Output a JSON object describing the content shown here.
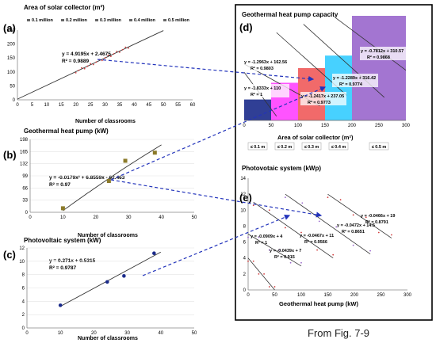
{
  "caption": "From Fig. 7-9",
  "colors": {
    "blue": "#1f3b8f",
    "red": "#d23b3b",
    "olive": "#8b7a2a",
    "navy": "#1a2a8a",
    "magenta": "#ff40ff",
    "salmon": "#f05a5a",
    "cyan": "#33ccff",
    "purple": "#9966cc",
    "trend": "#444444",
    "dash": "#2233bb"
  },
  "panel_a": {
    "label": "(a)",
    "title": "Area of solar collector (m²)",
    "legend": [
      "0.1 million",
      "0.2 million",
      "0.3 million",
      "0.4 million",
      "0.5 million"
    ],
    "equation": "y = 4.9195x + 2.4675",
    "r2": "R² = 0.9889",
    "xlabel": "Number of classrooms",
    "xticks": [
      0,
      5,
      10,
      15,
      20,
      25,
      30,
      35,
      40,
      45,
      50,
      55,
      60
    ],
    "yticks": [
      0,
      50,
      100,
      150,
      200,
      250
    ],
    "xlim": [
      0,
      60
    ],
    "ylim": [
      0,
      250
    ],
    "trend": {
      "slope": 4.9195,
      "intercept": 2.4675,
      "x": [
        0,
        50
      ]
    },
    "points_x": [
      20,
      21,
      22,
      23,
      24,
      25,
      26,
      27,
      28,
      29,
      30,
      31,
      32,
      33,
      34,
      35,
      36,
      37,
      38
    ]
  },
  "panel_b": {
    "label": "(b)",
    "title": "Geothermal heat pump (kW)",
    "equation": "y = -0.0179x² + 6.8559x - 62.463",
    "r2": "R² = 0.97",
    "xlabel": "Number of classrooms",
    "xticks": [
      0,
      10,
      20,
      30,
      40,
      50
    ],
    "yticks": [
      0,
      33,
      66,
      99,
      132,
      165,
      198
    ],
    "xlim": [
      0,
      50
    ],
    "ylim": [
      0,
      198
    ],
    "points": [
      {
        "x": 10,
        "y": 11
      },
      {
        "x": 24,
        "y": 85
      },
      {
        "x": 29,
        "y": 140
      },
      {
        "x": 38,
        "y": 162
      }
    ],
    "trend": {
      "a": -0.0179,
      "b": 6.8559,
      "c": -62.463,
      "x": [
        10,
        40
      ]
    }
  },
  "panel_c": {
    "label": "(c)",
    "title": "Photovoltaic system (kW)",
    "equation": "y = 0.271x + 0.5315",
    "r2": "R² = 0.9787",
    "xlabel": "Number of classrooms",
    "xticks": [
      0,
      10,
      20,
      30,
      40,
      50
    ],
    "yticks": [
      0,
      2,
      4,
      6,
      8,
      10,
      12
    ],
    "xlim": [
      0,
      50
    ],
    "ylim": [
      0,
      12
    ],
    "points": [
      {
        "x": 10,
        "y": 3.4
      },
      {
        "x": 24,
        "y": 6.9
      },
      {
        "x": 29,
        "y": 7.8
      },
      {
        "x": 38,
        "y": 11.2
      }
    ],
    "trend": {
      "slope": 0.271,
      "intercept": 0.5315,
      "x": [
        10,
        40
      ]
    }
  },
  "panel_d": {
    "label": "(d)",
    "title": "Geothermal heat pump capacity",
    "xlabel": "Area of solar collector (m²)",
    "xticks": [
      0,
      50,
      100,
      150,
      200,
      250,
      300
    ],
    "xlim": [
      0,
      300
    ],
    "ylim": [
      0,
      250
    ],
    "bars": [
      {
        "x0": 0,
        "x1": 50,
        "h": 50,
        "color": "#1a2a8a",
        "label": "≤ 0.1 m"
      },
      {
        "x0": 50,
        "x1": 100,
        "h": 90,
        "color": "#ff40ff",
        "label": "≤ 0.2 m"
      },
      {
        "x0": 100,
        "x1": 150,
        "h": 125,
        "color": "#f05a5a",
        "label": "≤ 0.3 m"
      },
      {
        "x0": 150,
        "x1": 200,
        "h": 155,
        "color": "#33ccff",
        "label": "≤ 0.4 m"
      },
      {
        "x0": 200,
        "x1": 300,
        "h": 250,
        "color": "#9966cc",
        "label": "≤ 0.5 m"
      }
    ],
    "lines": [
      {
        "x0": 0,
        "y0": 135,
        "x1": 140,
        "y1": 35,
        "eq": "y = -1.2963x + 162.56",
        "r2": "R² = 0.9803"
      },
      {
        "x0": 0,
        "y0": 115,
        "x1": 60,
        "y1": 10,
        "eq": "y = -1.8333x + 110",
        "r2": "R² = 1"
      },
      {
        "x0": 60,
        "y0": 210,
        "x1": 190,
        "y1": 60,
        "eq": "y = -1.2417x + 237.05",
        "r2": "R² = 0.9773"
      },
      {
        "x0": 110,
        "y0": 230,
        "x1": 260,
        "y1": 55,
        "eq": "y = -1.2289x + 316.42",
        "r2": "R² = 0.9774"
      },
      {
        "x0": 170,
        "y0": 245,
        "x1": 300,
        "y1": 120,
        "eq": "y = -0.7812x + 310.57",
        "r2": "R² = 0.9868"
      }
    ]
  },
  "panel_e": {
    "label": "(e)",
    "title": "Photovotaic system (kWp)",
    "xlabel": "Geothermal heat pump (kW)",
    "xticks": [
      0,
      50,
      100,
      150,
      200,
      250,
      300
    ],
    "yticks": [
      0,
      2,
      4,
      6,
      8,
      10,
      12,
      14
    ],
    "xlim": [
      0,
      300
    ],
    "ylim": [
      0,
      14
    ],
    "lines": [
      {
        "x0": 0,
        "y0": 4,
        "x1": 50,
        "y1": 0,
        "eq": "y = -0.0909x + 4",
        "r2": "R² = 1"
      },
      {
        "x0": 0,
        "y0": 7,
        "x1": 100,
        "y1": 3,
        "eq": "y = -0.0439x + 7",
        "r2": "R² = 0.915"
      },
      {
        "x0": 10,
        "y0": 11,
        "x1": 160,
        "y1": 4,
        "eq": "y = -0.0467x + 11",
        "r2": "R² = 0.9566"
      },
      {
        "x0": 70,
        "y0": 12,
        "x1": 230,
        "y1": 4.5,
        "eq": "y = -0.0472x + 14.5",
        "r2": "R² = 0.8651"
      },
      {
        "x0": 150,
        "y0": 12,
        "x1": 270,
        "y1": 6.5,
        "eq": "y = -0.0466x + 19",
        "r2": "R² = 0.8791"
      }
    ]
  }
}
